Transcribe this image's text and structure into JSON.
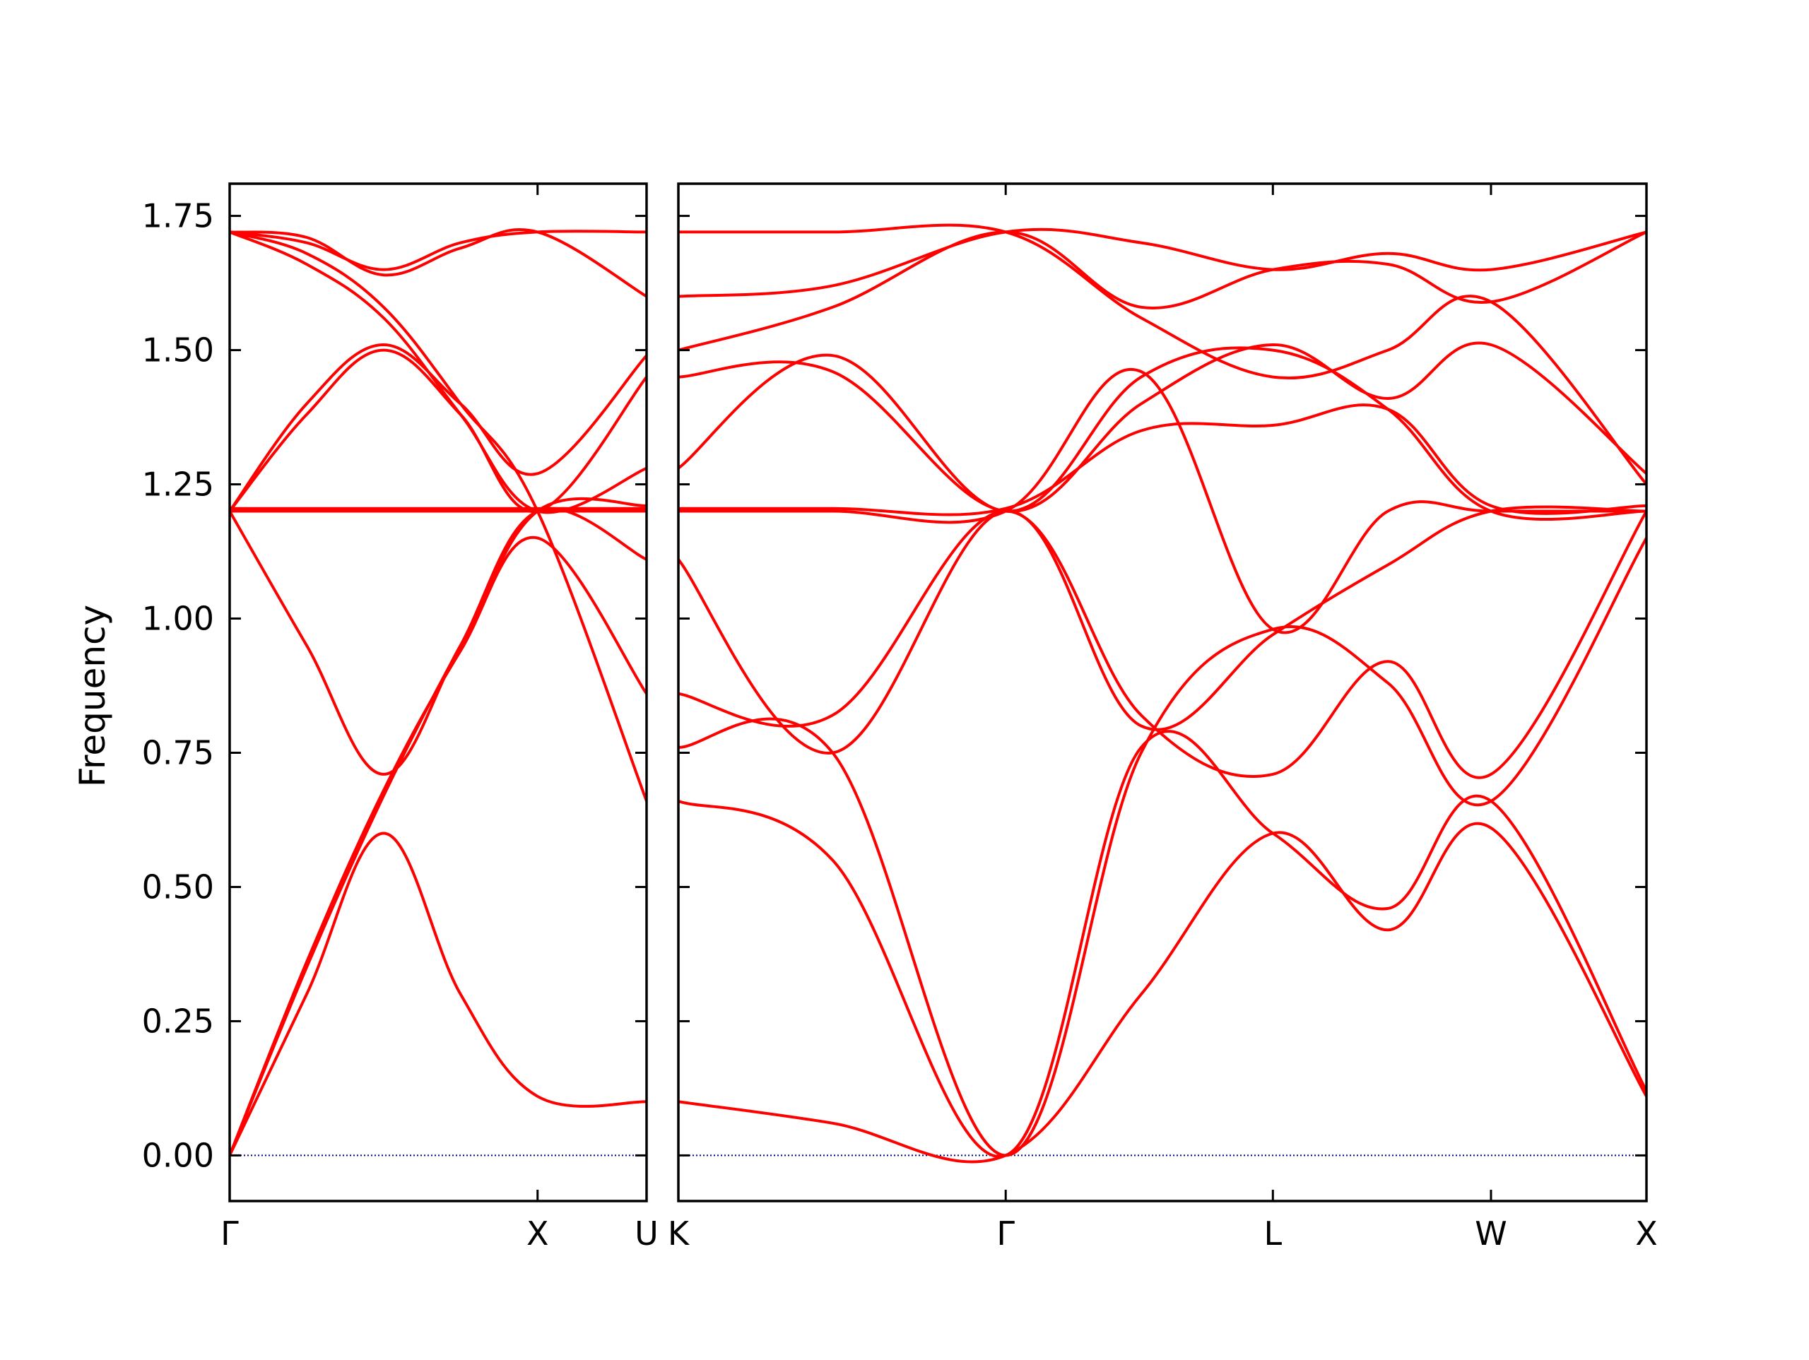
{
  "chart_data": {
    "type": "line",
    "ylabel": "Frequency",
    "ylim": [
      -0.085,
      1.81
    ],
    "yticks": [
      0.0,
      0.25,
      0.5,
      0.75,
      1.0,
      1.25,
      1.5,
      1.75
    ],
    "ytick_labels": [
      "0.00",
      "0.25",
      "0.50",
      "0.75",
      "1.00",
      "1.25",
      "1.50",
      "1.75"
    ],
    "grid": false,
    "line_color": "#ff0000",
    "zero_line_color": "#00008b",
    "panels": [
      {
        "name": "Γ-X-U",
        "x_range": [
          0,
          1.354
        ],
        "xticks": [
          0,
          1.0
        ],
        "xtick_labels": [
          "Γ",
          "X"
        ],
        "end_label": "U",
        "bands": [
          {
            "x": [
              0,
              0.25,
              0.5,
              0.75,
              1.0,
              1.354
            ],
            "y": [
              0.0,
              0.3,
              0.6,
              0.3,
              0.11,
              0.1
            ]
          },
          {
            "x": [
              0,
              0.25,
              0.5,
              0.75,
              1.0,
              1.354
            ],
            "y": [
              0.0,
              0.35,
              0.67,
              0.95,
              1.2,
              1.11
            ]
          },
          {
            "x": [
              0,
              0.25,
              0.5,
              0.75,
              1.0,
              1.354
            ],
            "y": [
              0.0,
              0.36,
              0.68,
              0.94,
              1.15,
              0.86
            ]
          },
          {
            "x": [
              0,
              0.25,
              0.5,
              0.75,
              1.0,
              1.354
            ],
            "y": [
              1.2,
              0.95,
              0.71,
              0.95,
              1.2,
              1.21
            ]
          },
          {
            "x": [
              0,
              0.25,
              0.5,
              0.75,
              1.0,
              1.354
            ],
            "y": [
              1.2,
              1.2,
              1.2,
              1.2,
              1.2,
              1.2
            ]
          },
          {
            "x": [
              0,
              0.25,
              0.5,
              0.75,
              1.0,
              1.354
            ],
            "y": [
              1.205,
              1.205,
              1.205,
              1.205,
              1.205,
              1.205
            ]
          },
          {
            "x": [
              0,
              0.25,
              0.5,
              0.75,
              1.0,
              1.354
            ],
            "y": [
              1.2,
              1.4,
              1.51,
              1.4,
              1.27,
              1.49
            ]
          },
          {
            "x": [
              0,
              0.25,
              0.5,
              0.75,
              1.0,
              1.354
            ],
            "y": [
              1.2,
              1.38,
              1.5,
              1.38,
              1.2,
              1.45
            ]
          },
          {
            "x": [
              0,
              0.25,
              0.5,
              0.75,
              1.0,
              1.354
            ],
            "y": [
              1.72,
              1.68,
              1.58,
              1.4,
              1.2,
              0.66
            ]
          },
          {
            "x": [
              0,
              0.25,
              0.5,
              0.75,
              1.0,
              1.354
            ],
            "y": [
              1.72,
              1.7,
              1.65,
              1.7,
              1.72,
              1.72
            ]
          },
          {
            "x": [
              0,
              0.25,
              0.5,
              0.75,
              1.0,
              1.354
            ],
            "y": [
              1.72,
              1.66,
              1.56,
              1.38,
              1.2,
              1.28
            ]
          },
          {
            "x": [
              0,
              0.25,
              0.5,
              0.75,
              1.0,
              1.354
            ],
            "y": [
              1.72,
              1.71,
              1.64,
              1.69,
              1.72,
              1.6
            ]
          }
        ]
      },
      {
        "name": "K-Γ-L-W-X",
        "x_range": [
          0,
          3.138
        ],
        "xticks": [
          0,
          1.061,
          1.927,
          2.634,
          3.138
        ],
        "xtick_labels": [
          "K",
          "Γ",
          "L",
          "W",
          "X"
        ],
        "bands": [
          {
            "x": [
              0,
              0.5,
              1.061,
              1.5,
              1.927,
              2.3,
              2.634,
              3.138
            ],
            "y": [
              0.1,
              0.06,
              0.0,
              0.3,
              0.6,
              0.42,
              0.61,
              0.11
            ]
          },
          {
            "x": [
              0,
              0.5,
              1.061,
              1.5,
              1.927,
              2.3,
              2.634,
              3.138
            ],
            "y": [
              0.66,
              0.55,
              0.0,
              0.76,
              0.6,
              0.46,
              0.66,
              0.12
            ]
          },
          {
            "x": [
              0,
              0.5,
              1.061,
              1.5,
              1.927,
              2.3,
              2.634,
              3.138
            ],
            "y": [
              0.76,
              0.75,
              0.0,
              0.75,
              0.98,
              0.88,
              0.66,
              1.15
            ]
          },
          {
            "x": [
              0,
              0.5,
              1.061,
              1.5,
              1.927,
              2.3,
              2.634,
              3.138
            ],
            "y": [
              0.86,
              0.82,
              1.2,
              0.82,
              0.71,
              0.92,
              0.71,
              1.2
            ]
          },
          {
            "x": [
              0,
              0.5,
              1.061,
              1.5,
              1.927,
              2.3,
              2.634,
              3.138
            ],
            "y": [
              1.11,
              0.75,
              1.2,
              0.8,
              0.97,
              1.1,
              1.2,
              1.2
            ]
          },
          {
            "x": [
              0,
              0.5,
              1.061,
              1.5,
              1.927,
              2.3,
              2.634,
              3.138
            ],
            "y": [
              1.2,
              1.2,
              1.2,
              1.46,
              0.98,
              1.2,
              1.2,
              1.2
            ]
          },
          {
            "x": [
              0,
              0.5,
              1.061,
              1.5,
              1.927,
              2.3,
              2.634,
              3.138
            ],
            "y": [
              1.205,
              1.205,
              1.205,
              1.35,
              1.36,
              1.39,
              1.21,
              1.21
            ]
          },
          {
            "x": [
              0,
              0.5,
              1.061,
              1.5,
              1.927,
              2.3,
              2.634,
              3.138
            ],
            "y": [
              1.45,
              1.46,
              1.2,
              1.4,
              1.51,
              1.41,
              1.51,
              1.27
            ]
          },
          {
            "x": [
              0,
              0.5,
              1.061,
              1.5,
              1.927,
              2.3,
              2.634,
              3.138
            ],
            "y": [
              1.5,
              1.58,
              1.72,
              1.58,
              1.65,
              1.66,
              1.59,
              1.72
            ]
          },
          {
            "x": [
              0,
              0.5,
              1.061,
              1.5,
              1.927,
              2.3,
              2.634,
              3.138
            ],
            "y": [
              1.6,
              1.62,
              1.72,
              1.7,
              1.65,
              1.68,
              1.65,
              1.72
            ]
          },
          {
            "x": [
              0,
              0.5,
              1.061,
              1.5,
              1.927,
              2.3,
              2.634,
              3.138
            ],
            "y": [
              1.72,
              1.72,
              1.72,
              1.56,
              1.45,
              1.5,
              1.59,
              1.25
            ]
          },
          {
            "x": [
              0,
              0.5,
              1.061,
              1.5,
              1.927,
              2.3,
              2.634,
              3.138
            ],
            "y": [
              1.28,
              1.49,
              1.2,
              1.45,
              1.5,
              1.39,
              1.2,
              1.2
            ]
          }
        ]
      }
    ]
  }
}
